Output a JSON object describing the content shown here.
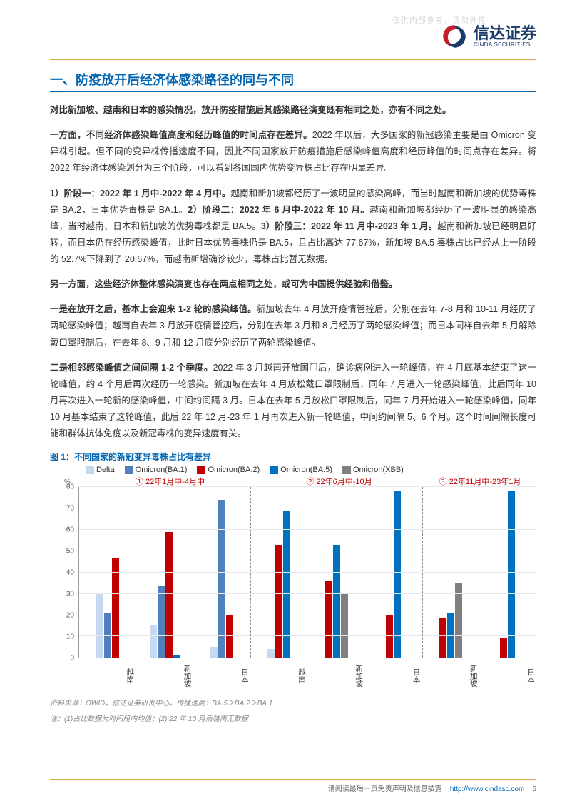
{
  "watermark": "仅供内部参考，请勿外传",
  "logo": {
    "cn": "信达证券",
    "en": "CINDA SECURITIES"
  },
  "section_title": "一、防疫放开后经济体感染路径的同与不同",
  "para1": "对比新加坡、越南和日本的感染情况，放开防疫措施后其感染路径演变既有相同之处，亦有不同之处。",
  "para2": "一方面，不同经济体感染峰值高度和经历峰值的时间点存在差异。",
  "para2b": "2022 年以后，大多国家的新冠感染主要是由 Omicron 变异株引起。但不同的变异株传播速度不同，因此不同国家放开防疫措施后感染峰值高度和经历峰值的时间点存在差异。将 2022 年经济体感染划分为三个阶段，可以看到各国国内优势变异株占比存在明显差异。",
  "para3a": "1）阶段一：2022 年 1 月中-2022 年 4 月中。",
  "para3b": "越南和新加坡都经历了一波明显的感染高峰，而当时越南和新加坡的优势毒株是 BA.2，日本优势毒株是 BA.1。",
  "para3c": "2）阶段二：2022 年 6 月中-2022 年 10 月。",
  "para3d": "越南和新加坡都经历了一波明显的感染高峰，当时越南、日本和新加坡的优势毒株都是 BA.5。",
  "para3e": "3）阶段三：2022 年 11 月中-2023 年 1 月。",
  "para3f": "越南和新加坡已经明显好转，而日本仍在经历感染峰值，此时日本优势毒株仍是 BA.5，且占比高达 77.67%，新加坡 BA.5 毒株占比已经从上一阶段的 52.7%下降到了 20.67%，而越南新增确诊较少，毒株占比暂无数据。",
  "para4": "另一方面，这些经济体整体感染演变也存在两点相同之处，或可为中国提供经验和借鉴。",
  "para5a": "一是在放开之后，基本上会迎来 1-2 轮的感染峰值。",
  "para5b": "新加坡去年 4 月放开疫情管控后，分别在去年 7-8 月和 10-11 月经历了两轮感染峰值；越南自去年 3 月放开疫情管控后，分别在去年 3 月和 8 月经历了两轮感染峰值；而日本同样自去年 5 月解除戴口罩限制后，在去年 8、9 月和 12 月底分别经历了两轮感染峰值。",
  "para6a": "二是相邻感染峰值之间间隔 1-2 个季度。",
  "para6b": "2022 年 3 月越南开放国门后，确诊病例进入一轮峰值，在 4 月底基本结束了这一轮峰值，约 4 个月后再次经历一轮感染。新加坡在去年 4 月放松戴口罩限制后，同年 7 月进入一轮感染峰值，此后同年 10 月再次进入一轮新的感染峰值，中间约间隔 3 月。日本在去年 5 月放松口罩限制后，同年 7 月开始进入一轮感染峰值，同年 10 月基本结束了这轮峰值，此后 22 年 12 月-23 年 1 月再次进入新一轮峰值，中间约间隔 5、6 个月。这个时间间隔长度可能和群体抗体免疫以及新冠毒株的变异速度有关。",
  "chart": {
    "caption": "图 1：不同国家的新冠变异毒株占比有差异",
    "y_unit": "%",
    "y_max": 80,
    "y_step": 10,
    "periods": [
      {
        "label": "① 22年1月中-4月中",
        "width": 37.5
      },
      {
        "label": "② 22年6月中-10月",
        "width": 37.5
      },
      {
        "label": "③ 22年11月中-23年1月",
        "width": 25
      }
    ],
    "vline_positions": [
      37.5,
      75
    ],
    "series": [
      {
        "name": "Delta",
        "color": "#c6d9f1"
      },
      {
        "name": "Omicron(BA.1)",
        "color": "#4f81bd"
      },
      {
        "name": "Omicron(BA.2)",
        "color": "#c00000"
      },
      {
        "name": "Omicron(BA.5)",
        "color": "#0070c0"
      },
      {
        "name": "Omicron(XBB)",
        "color": "#808080"
      }
    ],
    "categories": [
      "越南",
      "新加坡",
      "日本",
      "越南",
      "新加坡",
      "日本",
      "新加坡",
      "日本"
    ],
    "data": [
      {
        "cat": "越南",
        "values": [
          30,
          21,
          47,
          0,
          0
        ]
      },
      {
        "cat": "新加坡",
        "values": [
          15,
          34,
          59,
          1,
          0
        ]
      },
      {
        "cat": "日本",
        "values": [
          5,
          74,
          20,
          0,
          0
        ]
      },
      {
        "cat": "越南",
        "values": [
          4,
          0,
          53,
          69,
          0
        ]
      },
      {
        "cat": "新加坡",
        "values": [
          0,
          0,
          36,
          53,
          30
        ]
      },
      {
        "cat": "日本",
        "values": [
          0,
          0,
          20,
          78,
          0
        ]
      },
      {
        "cat": "新加坡",
        "values": [
          0,
          0,
          19,
          21,
          35
        ]
      },
      {
        "cat": "日本",
        "values": [
          0,
          0,
          9,
          78,
          0
        ]
      }
    ],
    "source1": "资料来源：OWID，信达证券研发中心，传播速度：BA.5＞BA.2＞BA.1",
    "source2": "注：(1)占比数据为时间段内均值；(2) 22 年 10 月后越南无数据"
  },
  "footer": {
    "text": "请阅读最后一页免责声明及信息披露",
    "url": "http://www.cindasc.com",
    "page": "5"
  }
}
